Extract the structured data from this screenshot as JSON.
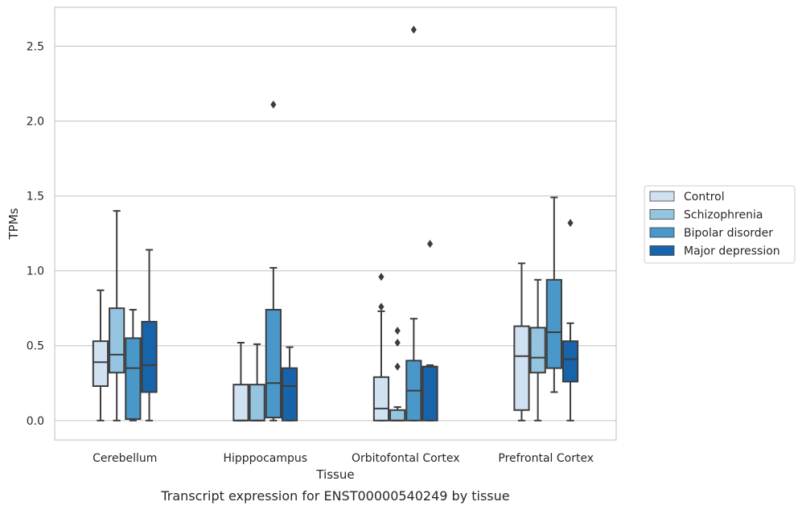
{
  "caption": "Transcript expression for ENST00000540249 by tissue",
  "chart_data": {
    "type": "boxplot",
    "xlabel": "Tissue",
    "ylabel": "TPMs",
    "ylim": [
      -0.13,
      2.76
    ],
    "yticks": [
      0.0,
      0.5,
      1.0,
      1.5,
      2.0,
      2.5
    ],
    "ytick_labels": [
      "0.0",
      "0.5",
      "1.0",
      "1.5",
      "2.0",
      "2.5"
    ],
    "categories": [
      "Cerebellum",
      "Hipppocampus",
      "Orbitofontal Cortex",
      "Prefrontal Cortex"
    ],
    "grid": "horizontal",
    "legend_position": "right",
    "series": [
      {
        "name": "Control",
        "color": "#d0e1f2",
        "boxes": [
          {
            "whislo": 0.0,
            "q1": 0.23,
            "med": 0.39,
            "q3": 0.53,
            "whishi": 0.87,
            "fliers": []
          },
          {
            "whislo": 0.0,
            "q1": 0.0,
            "med": 0.0,
            "q3": 0.24,
            "whishi": 0.52,
            "fliers": []
          },
          {
            "whislo": 0.0,
            "q1": 0.0,
            "med": 0.08,
            "q3": 0.29,
            "whishi": 0.73,
            "fliers": [
              0.76,
              0.96
            ]
          },
          {
            "whislo": 0.0,
            "q1": 0.07,
            "med": 0.43,
            "q3": 0.63,
            "whishi": 1.05,
            "fliers": []
          }
        ]
      },
      {
        "name": "Schizophrenia",
        "color": "#94c4df",
        "boxes": [
          {
            "whislo": 0.0,
            "q1": 0.32,
            "med": 0.44,
            "q3": 0.75,
            "whishi": 1.4,
            "fliers": []
          },
          {
            "whislo": 0.0,
            "q1": 0.0,
            "med": 0.0,
            "q3": 0.24,
            "whishi": 0.51,
            "fliers": []
          },
          {
            "whislo": 0.0,
            "q1": 0.0,
            "med": 0.0,
            "q3": 0.07,
            "whishi": 0.09,
            "fliers": [
              0.36,
              0.52,
              0.6
            ]
          },
          {
            "whislo": 0.0,
            "q1": 0.32,
            "med": 0.42,
            "q3": 0.62,
            "whishi": 0.94,
            "fliers": []
          }
        ]
      },
      {
        "name": "Bipolar disorder",
        "color": "#4a98c9",
        "boxes": [
          {
            "whislo": 0.0,
            "q1": 0.01,
            "med": 0.35,
            "q3": 0.55,
            "whishi": 0.74,
            "fliers": []
          },
          {
            "whislo": 0.0,
            "q1": 0.02,
            "med": 0.25,
            "q3": 0.74,
            "whishi": 1.02,
            "fliers": [
              2.11
            ]
          },
          {
            "whislo": 0.0,
            "q1": 0.0,
            "med": 0.2,
            "q3": 0.4,
            "whishi": 0.68,
            "fliers": [
              2.61
            ]
          },
          {
            "whislo": 0.19,
            "q1": 0.35,
            "med": 0.59,
            "q3": 0.94,
            "whishi": 1.49,
            "fliers": []
          }
        ]
      },
      {
        "name": "Major depression",
        "color": "#1764ab",
        "boxes": [
          {
            "whislo": 0.0,
            "q1": 0.19,
            "med": 0.37,
            "q3": 0.66,
            "whishi": 1.14,
            "fliers": []
          },
          {
            "whislo": 0.0,
            "q1": 0.0,
            "med": 0.23,
            "q3": 0.35,
            "whishi": 0.49,
            "fliers": []
          },
          {
            "whislo": 0.0,
            "q1": 0.0,
            "med": 0.36,
            "q3": 0.36,
            "whishi": 0.37,
            "fliers": [
              1.18
            ]
          },
          {
            "whislo": 0.0,
            "q1": 0.26,
            "med": 0.41,
            "q3": 0.53,
            "whishi": 0.65,
            "fliers": [
              1.32
            ]
          }
        ]
      }
    ]
  }
}
